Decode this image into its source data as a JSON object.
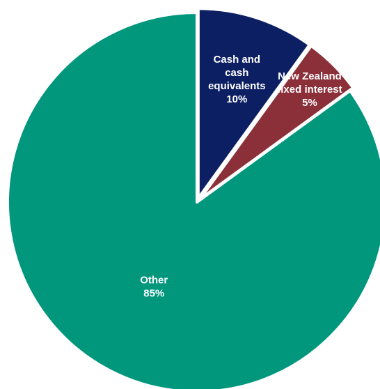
{
  "chart_data": {
    "type": "pie",
    "slices": [
      {
        "label_lines": [
          "Cash and",
          "cash",
          "equivalents"
        ],
        "pct_label": "10%",
        "value": 10,
        "color": "#0d1f63"
      },
      {
        "label_lines": [
          "New Zealand",
          "fixed interest"
        ],
        "pct_label": "5%",
        "value": 5,
        "color": "#8b2f39"
      },
      {
        "label_lines": [
          "Other"
        ],
        "pct_label": "85%",
        "value": 85,
        "color": "#00977d"
      }
    ],
    "start_angle_deg": 0,
    "direction": "clockwise",
    "legend": "none"
  }
}
